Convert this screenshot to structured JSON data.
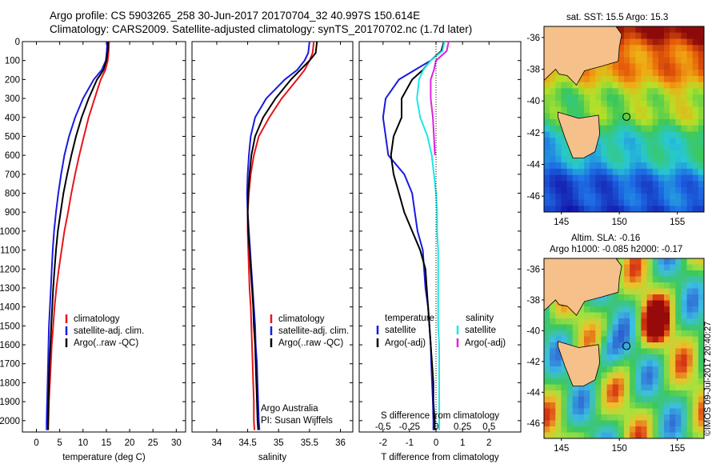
{
  "header": {
    "line1": "Argo profile: CS 5903265_258 30-Jun-2017 20170704_32 40.997S 150.614E",
    "line2": "Climatology: CARS2009. Satellite-adjusted climatology: synTS_20170702.nc (1.7d later)"
  },
  "maps": {
    "sst_caption": "sat. SST: 15.5 Argo: 15.3",
    "sla_caption1": "Altim. SLA: -0.16",
    "sla_caption2": "Argo h1000: -0.085 h2000: -0.17",
    "lon_ticks": [
      "145",
      "150",
      "155"
    ],
    "lat_ticks": [
      "-36",
      "-38",
      "-40",
      "-42",
      "-44",
      "-46"
    ],
    "colors": {
      "land": "#f5c08a",
      "argo_marker": "#000000"
    }
  },
  "footer": {
    "copyright": "©IMOS 09-Jul-2017 20:40:27",
    "credit1": "Argo Australia",
    "credit2": "PI: Susan Wijffels"
  },
  "colors": {
    "climatology": "#e8141a",
    "satellite": "#1a1ae0",
    "argo": "#000000",
    "cyan": "#1fe6e6",
    "magenta": "#e020e0"
  },
  "chart_data": [
    {
      "type": "line",
      "xlabel": "temperature (deg C)",
      "ylabel": "",
      "xlim": [
        -3,
        32
      ],
      "ylim": [
        2060,
        0
      ],
      "xticks": [
        0,
        5,
        10,
        15,
        20,
        25,
        30
      ],
      "yticks": [
        0,
        100,
        200,
        300,
        400,
        500,
        600,
        700,
        800,
        900,
        1000,
        1100,
        1200,
        1300,
        1400,
        1500,
        1600,
        1700,
        1800,
        1900,
        2000
      ],
      "legend": [
        "climatology",
        "satellite-adj. clim.",
        "Argo(..raw -QC)"
      ],
      "series": [
        {
          "name": "climatology",
          "color": "#e8141a",
          "points": [
            [
              15.6,
              0
            ],
            [
              15.5,
              50
            ],
            [
              15.3,
              100
            ],
            [
              14.8,
              150
            ],
            [
              13.8,
              200
            ],
            [
              12.5,
              300
            ],
            [
              11.2,
              400
            ],
            [
              10.2,
              500
            ],
            [
              9.2,
              600
            ],
            [
              8.3,
              700
            ],
            [
              7.5,
              800
            ],
            [
              6.8,
              900
            ],
            [
              6.0,
              1000
            ],
            [
              5.4,
              1100
            ],
            [
              4.8,
              1200
            ],
            [
              4.3,
              1300
            ],
            [
              3.9,
              1400
            ],
            [
              3.6,
              1500
            ],
            [
              3.3,
              1600
            ],
            [
              3.1,
              1700
            ],
            [
              2.9,
              1800
            ],
            [
              2.7,
              1900
            ],
            [
              2.6,
              2000
            ],
            [
              2.5,
              2050
            ]
          ]
        },
        {
          "name": "satellite-adj. clim.",
          "color": "#1a1ae0",
          "points": [
            [
              15.2,
              0
            ],
            [
              15.1,
              50
            ],
            [
              14.9,
              100
            ],
            [
              14.0,
              150
            ],
            [
              12.3,
              200
            ],
            [
              10.0,
              300
            ],
            [
              8.3,
              400
            ],
            [
              7.0,
              500
            ],
            [
              6.0,
              600
            ],
            [
              5.3,
              700
            ],
            [
              4.7,
              800
            ],
            [
              4.2,
              900
            ],
            [
              3.8,
              1000
            ],
            [
              3.5,
              1100
            ],
            [
              3.3,
              1200
            ],
            [
              3.1,
              1300
            ],
            [
              2.9,
              1400
            ],
            [
              2.7,
              1500
            ],
            [
              2.6,
              1600
            ],
            [
              2.5,
              1700
            ],
            [
              2.4,
              1800
            ],
            [
              2.3,
              1900
            ],
            [
              2.2,
              2000
            ],
            [
              2.2,
              2050
            ]
          ]
        },
        {
          "name": "Argo(..raw -QC)",
          "color": "#000000",
          "points": [
            [
              15.4,
              0
            ],
            [
              15.3,
              50
            ],
            [
              15.0,
              100
            ],
            [
              14.4,
              150
            ],
            [
              13.0,
              200
            ],
            [
              11.2,
              300
            ],
            [
              9.7,
              400
            ],
            [
              8.5,
              500
            ],
            [
              7.5,
              600
            ],
            [
              6.6,
              700
            ],
            [
              5.8,
              800
            ],
            [
              5.2,
              900
            ],
            [
              4.6,
              1000
            ],
            [
              4.2,
              1100
            ],
            [
              3.9,
              1200
            ],
            [
              3.6,
              1300
            ],
            [
              3.4,
              1400
            ],
            [
              3.2,
              1500
            ],
            [
              3.0,
              1600
            ],
            [
              2.8,
              1700
            ],
            [
              2.7,
              1800
            ],
            [
              2.6,
              1900
            ],
            [
              2.5,
              2000
            ],
            [
              2.5,
              2050
            ]
          ]
        }
      ]
    },
    {
      "type": "line",
      "xlabel": "salinity",
      "ylabel": "",
      "xlim": [
        33.6,
        36.2
      ],
      "ylim": [
        2060,
        0
      ],
      "xticks": [
        34,
        34.5,
        35,
        35.5,
        36
      ],
      "xticklabels": [
        "34",
        "34.5",
        "35",
        "35.5",
        "36"
      ],
      "legend": [
        "climatology",
        "satellite-adj. clim.",
        "Argo(..raw -QC)"
      ],
      "series": [
        {
          "name": "climatology",
          "color": "#e8141a",
          "points": [
            [
              35.57,
              0
            ],
            [
              35.55,
              60
            ],
            [
              35.5,
              100
            ],
            [
              35.42,
              150
            ],
            [
              35.3,
              200
            ],
            [
              35.05,
              300
            ],
            [
              34.85,
              400
            ],
            [
              34.68,
              500
            ],
            [
              34.6,
              600
            ],
            [
              34.55,
              700
            ],
            [
              34.52,
              800
            ],
            [
              34.5,
              900
            ],
            [
              34.5,
              1000
            ],
            [
              34.51,
              1100
            ],
            [
              34.52,
              1200
            ],
            [
              34.53,
              1300
            ],
            [
              34.55,
              1400
            ],
            [
              34.56,
              1500
            ],
            [
              34.57,
              1600
            ],
            [
              34.58,
              1700
            ],
            [
              34.59,
              1800
            ],
            [
              34.6,
              1900
            ],
            [
              34.6,
              2000
            ],
            [
              34.61,
              2050
            ]
          ]
        },
        {
          "name": "satellite-adj. clim.",
          "color": "#1a1ae0",
          "points": [
            [
              35.5,
              0
            ],
            [
              35.48,
              60
            ],
            [
              35.42,
              100
            ],
            [
              35.3,
              150
            ],
            [
              35.1,
              200
            ],
            [
              34.8,
              300
            ],
            [
              34.62,
              400
            ],
            [
              34.55,
              500
            ],
            [
              34.52,
              600
            ],
            [
              34.5,
              700
            ],
            [
              34.49,
              800
            ],
            [
              34.5,
              900
            ],
            [
              34.52,
              1000
            ],
            [
              34.54,
              1100
            ],
            [
              34.56,
              1200
            ],
            [
              34.58,
              1300
            ],
            [
              34.6,
              1400
            ],
            [
              34.62,
              1500
            ],
            [
              34.63,
              1600
            ],
            [
              34.65,
              1700
            ],
            [
              34.66,
              1800
            ],
            [
              34.67,
              1900
            ],
            [
              34.68,
              2000
            ],
            [
              34.69,
              2050
            ]
          ]
        },
        {
          "name": "Argo(..raw -QC)",
          "color": "#000000",
          "points": [
            [
              35.62,
              0
            ],
            [
              35.6,
              60
            ],
            [
              35.5,
              100
            ],
            [
              35.35,
              150
            ],
            [
              35.2,
              200
            ],
            [
              34.95,
              300
            ],
            [
              34.75,
              400
            ],
            [
              34.62,
              500
            ],
            [
              34.56,
              600
            ],
            [
              34.53,
              700
            ],
            [
              34.51,
              800
            ],
            [
              34.5,
              900
            ],
            [
              34.51,
              1000
            ],
            [
              34.53,
              1100
            ],
            [
              34.55,
              1200
            ],
            [
              34.57,
              1300
            ],
            [
              34.59,
              1400
            ],
            [
              34.6,
              1500
            ],
            [
              34.62,
              1600
            ],
            [
              34.63,
              1700
            ],
            [
              34.64,
              1800
            ],
            [
              34.65,
              1900
            ],
            [
              34.66,
              2000
            ],
            [
              34.67,
              2050
            ]
          ]
        }
      ]
    },
    {
      "type": "line",
      "xlabel": "T difference from climatology",
      "xlabel2": "S difference from climatology",
      "xlim": [
        -2.9,
        3.2
      ],
      "ylim": [
        2060,
        0
      ],
      "xticks": [
        -2,
        -1,
        0,
        1,
        2
      ],
      "xticks2": [
        -0.5,
        -0.25,
        0,
        0.25,
        0.5
      ],
      "xticklabels2": [
        "-0.5",
        "-0.25",
        "0",
        "0.25",
        "0.5"
      ],
      "legend_titles": [
        "temperature",
        "salinity"
      ],
      "legend": [
        "satellite",
        "Argo(-adj)",
        "satellite",
        "Argo(-adj)"
      ],
      "series": [
        {
          "name": "satellite",
          "color": "#1a1ae0",
          "points": [
            [
              0.3,
              0
            ],
            [
              0.2,
              50
            ],
            [
              -0.2,
              100
            ],
            [
              -0.8,
              150
            ],
            [
              -1.4,
              200
            ],
            [
              -1.9,
              300
            ],
            [
              -2.0,
              400
            ],
            [
              -1.9,
              500
            ],
            [
              -1.8,
              600
            ],
            [
              -1.2,
              700
            ],
            [
              -0.9,
              800
            ],
            [
              -0.8,
              900
            ],
            [
              -0.7,
              1000
            ],
            [
              -0.5,
              1100
            ],
            [
              -0.45,
              1200
            ],
            [
              -0.4,
              1300
            ],
            [
              -0.3,
              1400
            ],
            [
              -0.25,
              1500
            ],
            [
              -0.2,
              1600
            ],
            [
              -0.18,
              1700
            ],
            [
              -0.15,
              1800
            ],
            [
              -0.12,
              1900
            ],
            [
              -0.1,
              2000
            ],
            [
              -0.1,
              2050
            ]
          ]
        },
        {
          "name": "Argo(-adj)",
          "color": "#000000",
          "points": [
            [
              0.3,
              0
            ],
            [
              0.2,
              50
            ],
            [
              -0.2,
              100
            ],
            [
              -0.5,
              150
            ],
            [
              -0.9,
              200
            ],
            [
              -1.3,
              300
            ],
            [
              -1.3,
              400
            ],
            [
              -1.6,
              500
            ],
            [
              -1.7,
              600
            ],
            [
              -1.6,
              700
            ],
            [
              -1.4,
              800
            ],
            [
              -1.2,
              900
            ],
            [
              -0.9,
              1000
            ],
            [
              -0.6,
              1100
            ],
            [
              -0.4,
              1200
            ],
            [
              -0.35,
              1300
            ],
            [
              -0.3,
              1400
            ],
            [
              -0.25,
              1500
            ],
            [
              -0.2,
              1600
            ],
            [
              -0.15,
              1700
            ],
            [
              -0.1,
              1800
            ],
            [
              -0.1,
              1900
            ],
            [
              -0.05,
              2000
            ],
            [
              -0.05,
              2050
            ]
          ]
        },
        {
          "name": "satellite",
          "color": "#1fe6e6",
          "axis": "S",
          "points": [
            [
              0.08,
              0
            ],
            [
              0.06,
              50
            ],
            [
              -0.05,
              100
            ],
            [
              -0.12,
              150
            ],
            [
              -0.16,
              200
            ],
            [
              -0.18,
              300
            ],
            [
              -0.15,
              400
            ],
            [
              -0.08,
              500
            ],
            [
              -0.04,
              600
            ],
            [
              -0.02,
              700
            ],
            [
              0.0,
              800
            ],
            [
              0.01,
              900
            ],
            [
              0.01,
              1000
            ],
            [
              0.02,
              1100
            ],
            [
              0.02,
              1200
            ],
            [
              0.02,
              1300
            ],
            [
              0.02,
              1400
            ],
            [
              0.02,
              1500
            ],
            [
              0.03,
              1600
            ],
            [
              0.03,
              1700
            ],
            [
              0.03,
              1800
            ],
            [
              0.03,
              1900
            ],
            [
              0.03,
              2000
            ],
            [
              0.03,
              2050
            ]
          ]
        },
        {
          "name": "Argo(-adj)",
          "color": "#e020e0",
          "axis": "S",
          "points": [
            [
              0.12,
              0
            ],
            [
              0.1,
              50
            ],
            [
              0.0,
              100
            ],
            [
              -0.02,
              150
            ],
            [
              -0.05,
              200
            ],
            [
              -0.05,
              300
            ],
            [
              -0.03,
              400
            ],
            [
              -0.02,
              500
            ],
            [
              -0.01,
              600
            ]
          ]
        }
      ]
    }
  ]
}
